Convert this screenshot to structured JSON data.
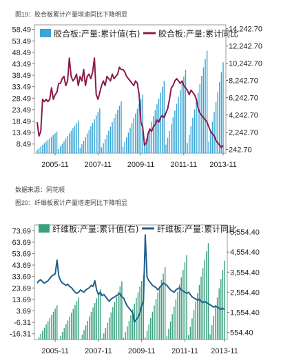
{
  "captions": {
    "fig19": "图19：胶合板累计产量增速同比下降明显",
    "fig20": "图20：纤维板累计产量增速同比下降明显",
    "source": "数据来源：同花顺"
  },
  "chart_data": [
    {
      "type": "bar+line",
      "title": "",
      "legend": [
        "胶合板:产量:累计值(右)",
        "胶合板:产量:累计同比"
      ],
      "legend_placement": "top",
      "left_axis": {
        "ticks": [
          8.49,
          13.49,
          18.49,
          23.49,
          28.49,
          33.49,
          38.49,
          43.49,
          48.49,
          53.49,
          58.49
        ],
        "ylim": [
          4.49,
          60.49
        ]
      },
      "right_axis": {
        "ticks": [
          "242.70",
          "2,242.70",
          "4,242.70",
          "6,242.70",
          "8,242.70",
          "10,242.70",
          "12,242.70",
          "14,242.70"
        ],
        "values": [
          242.7,
          2242.7,
          4242.7,
          6242.7,
          8242.7,
          10242.7,
          12242.7,
          14242.7
        ],
        "ylim": [
          -200,
          14700
        ]
      },
      "x_ticks": [
        "2005-11",
        "2007-11",
        "2009-11",
        "2011-11",
        "2013-11"
      ],
      "series": [
        {
          "name": "胶合板:产量:累计值(右)",
          "kind": "bar",
          "axis": "right",
          "color": "#3aa5d6",
          "yearly_totals": [
            2300,
            3600,
            5000,
            5800,
            6600,
            8200,
            9500,
            11700,
            13800
          ]
        },
        {
          "name": "胶合板:产量:累计同比",
          "kind": "line",
          "axis": "left",
          "color": "#8b1a4a",
          "values": [
            18,
            12,
            14,
            28,
            27,
            28,
            27,
            28,
            33,
            28,
            30,
            31,
            35,
            35,
            37,
            38,
            34,
            36,
            46,
            38,
            36,
            37,
            39,
            34,
            38,
            36,
            41,
            34,
            38,
            39,
            37,
            40,
            46,
            30,
            28,
            31,
            34,
            36,
            34,
            38,
            37,
            36,
            39,
            37,
            38,
            39,
            42,
            41,
            41,
            40,
            38,
            37,
            36,
            35,
            34,
            36,
            35,
            30,
            18,
            16,
            8,
            9,
            13,
            15,
            14,
            16,
            17,
            19,
            18,
            20,
            21,
            20,
            22,
            24,
            28,
            33,
            34,
            36,
            37,
            36,
            35,
            36,
            34,
            33,
            32,
            30,
            32,
            31,
            30,
            28,
            24,
            22,
            21,
            20,
            19,
            18,
            16,
            14,
            13,
            12,
            10,
            9,
            8,
            7,
            8
          ]
        }
      ]
    },
    {
      "type": "bar+line",
      "title": "",
      "legend": [
        "纤维板:产量:累计值(右)",
        "纤维板:产量:累计同比"
      ],
      "legend_placement": "top",
      "left_axis": {
        "ticks": [
          -16.31,
          -6.31,
          3.69,
          13.69,
          23.69,
          33.69,
          43.69,
          53.69,
          63.69,
          73.69
        ],
        "ylim": [
          -21.31,
          78.69
        ]
      },
      "right_axis": {
        "ticks": [
          "554.40",
          "1,554.40",
          "2,554.40",
          "3,554.40",
          "4,554.40",
          "5,554.40"
        ],
        "values": [
          554.4,
          1554.4,
          2554.4,
          3554.4,
          4554.4,
          5554.4
        ],
        "ylim": [
          200,
          5900
        ]
      },
      "x_ticks": [
        "2005-11",
        "2007-11",
        "2009-11",
        "2011-11",
        "2013-11"
      ],
      "series": [
        {
          "name": "纤维板:产量:累计值(右)",
          "kind": "bar",
          "axis": "right",
          "color": "#3aa17e",
          "yearly_totals": [
            1900,
            2300,
            2700,
            3100,
            3400,
            3800,
            4400,
            5000,
            5500
          ]
        },
        {
          "name": "纤维板:产量:累计同比",
          "kind": "line",
          "axis": "left",
          "color": "#1f5f8b",
          "values": [
            28,
            30,
            31,
            29,
            28,
            29,
            30,
            32,
            34,
            35,
            36,
            48,
            34,
            30,
            28,
            27,
            26,
            27,
            25,
            24,
            22,
            20,
            19,
            20,
            22,
            21,
            20,
            22,
            23,
            24,
            26,
            25,
            30,
            22,
            18,
            20,
            17,
            18,
            16,
            14,
            12,
            14,
            15,
            16,
            17,
            18,
            19,
            16,
            15,
            11,
            8,
            6,
            4,
            2,
            -6,
            -4,
            -2,
            2,
            8,
            12,
            70,
            33,
            30,
            28,
            26,
            25,
            24,
            22,
            24,
            26,
            28,
            27,
            26,
            24,
            22,
            21,
            20,
            22,
            23,
            24,
            22,
            21,
            20,
            19,
            20,
            18,
            16,
            15,
            14,
            13,
            14,
            12,
            11,
            12,
            11,
            10,
            9,
            8,
            7,
            8,
            7,
            6,
            5,
            6,
            5
          ]
        }
      ]
    }
  ]
}
